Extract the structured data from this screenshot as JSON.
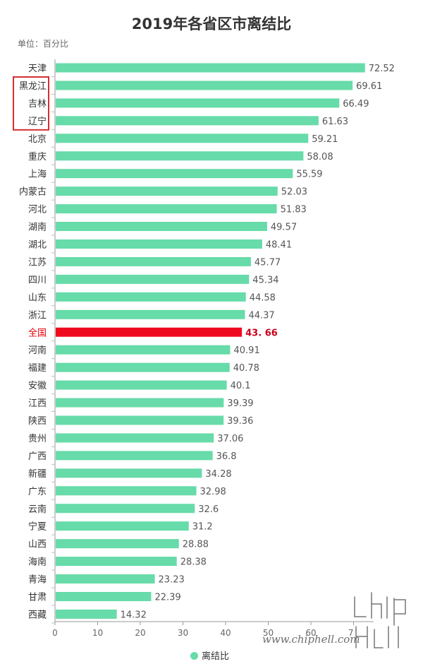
{
  "title": "2019年各省区市离结比",
  "unit_label": "单位：百分比",
  "legend_label": "离结比",
  "watermark_text": "www.chiphell.com",
  "watermark_logo": "chip hell",
  "colors": {
    "bar": "#67dba9",
    "highlight": "#ef0b1f",
    "box": "#d32f2f"
  },
  "chart_data": {
    "type": "bar",
    "orientation": "horizontal",
    "title": "2019年各省区市离结比",
    "xlim": [
      0,
      75
    ],
    "xticks": [
      0,
      10,
      20,
      30,
      40,
      50,
      60,
      70
    ],
    "categories": [
      "天津",
      "黑龙江",
      "吉林",
      "辽宁",
      "北京",
      "重庆",
      "上海",
      "内蒙古",
      "河北",
      "湖南",
      "湖北",
      "江苏",
      "四川",
      "山东",
      "浙江",
      "全国",
      "河南",
      "福建",
      "安徽",
      "江西",
      "陕西",
      "贵州",
      "广西",
      "新疆",
      "广东",
      "云南",
      "宁夏",
      "山西",
      "海南",
      "青海",
      "甘肃",
      "西藏"
    ],
    "series": [
      {
        "name": "离结比",
        "values": [
          72.52,
          69.61,
          66.49,
          61.63,
          59.21,
          58.08,
          55.59,
          52.03,
          51.83,
          49.57,
          48.41,
          45.77,
          45.34,
          44.58,
          44.37,
          43.66,
          40.91,
          40.78,
          40.1,
          39.39,
          39.36,
          37.06,
          36.8,
          34.28,
          32.98,
          32.6,
          31.2,
          28.88,
          28.38,
          23.23,
          22.39,
          14.32
        ],
        "value_labels": [
          "72.52",
          "69.61",
          "66.49",
          "61.63",
          "59.21",
          "58.08",
          "55.59",
          "52.03",
          "51.83",
          "49.57",
          "48.41",
          "45.77",
          "45.34",
          "44.58",
          "44.37",
          "43. 66",
          "40.91",
          "40.78",
          "40.1",
          "39.39",
          "39.36",
          "37.06",
          "36.8",
          "34.28",
          "32.98",
          "32.6",
          "31.2",
          "28.88",
          "28.38",
          "23.23",
          "22.39",
          "14.32"
        ]
      }
    ],
    "highlight_category": "全国",
    "boxed_categories": [
      "黑龙江",
      "吉林",
      "辽宁"
    ],
    "legend_position": "bottom"
  }
}
